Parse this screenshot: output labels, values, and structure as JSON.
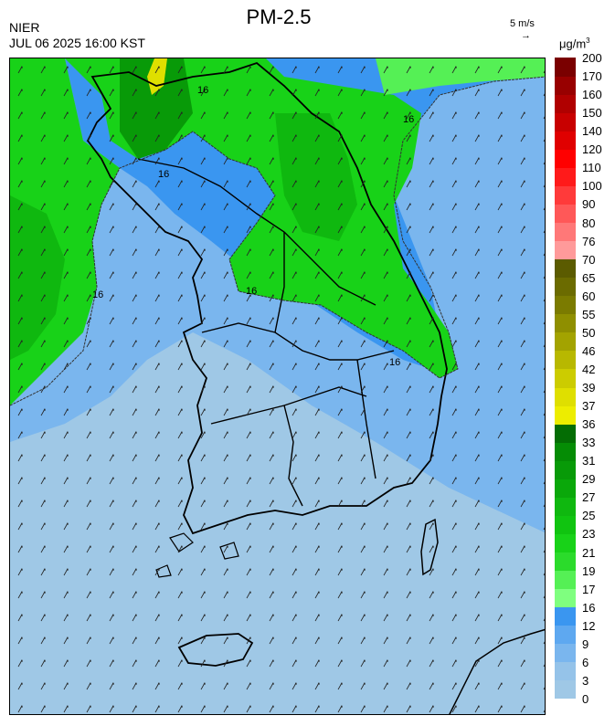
{
  "header": {
    "title": "PM-2.5",
    "source": "NIER",
    "timestamp": "JUL 06 2025 16:00 KST",
    "wind_scale_label": "5 m/s",
    "unit_base": "μg/m",
    "unit_exp": "3"
  },
  "contour_labels": [
    "16",
    "16",
    "16",
    "16",
    "16",
    "16"
  ],
  "colorbar": {
    "levels": [
      "0",
      "3",
      "6",
      "9",
      "12",
      "16",
      "17",
      "19",
      "21",
      "23",
      "25",
      "27",
      "29",
      "31",
      "33",
      "36",
      "37",
      "39",
      "42",
      "46",
      "50",
      "55",
      "60",
      "65",
      "70",
      "76",
      "80",
      "90",
      "100",
      "110",
      "120",
      "140",
      "150",
      "160",
      "170",
      "200"
    ],
    "colors": [
      "#9fc8e6",
      "#95c3e9",
      "#7ab6ee",
      "#5ea8f0",
      "#3a96f0",
      "#7fff7f",
      "#55f055",
      "#2bdb2b",
      "#18d218",
      "#10c410",
      "#0fb80f",
      "#0aa80a",
      "#089a08",
      "#058c05",
      "#046d04",
      "#eded00",
      "#dfdf00",
      "#cccc00",
      "#b8b800",
      "#a3a300",
      "#8f8f00",
      "#7b7b00",
      "#6b6b00",
      "#5b5b00",
      "#ff9a9a",
      "#ff7878",
      "#ff5858",
      "#ff3a3a",
      "#ff1a1a",
      "#ff0000",
      "#e00000",
      "#c80000",
      "#b00000",
      "#980000",
      "#7a0000"
    ]
  }
}
